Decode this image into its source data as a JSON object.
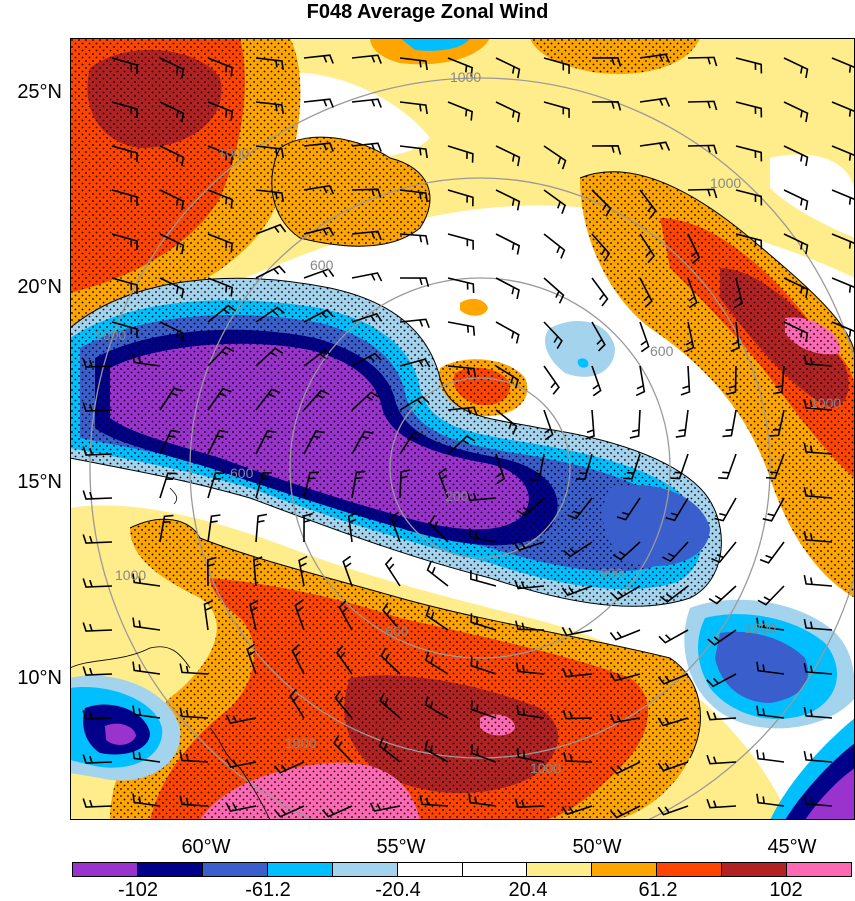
{
  "title": "F048 Average Zonal Wind",
  "axes": {
    "lat_labels": [
      "25°N",
      "20°N",
      "15°N",
      "10°N"
    ],
    "lon_labels": [
      "60°W",
      "55°W",
      "50°W",
      "45°W"
    ]
  },
  "colorbar": {
    "colors": [
      "#9a32cd",
      "#00008b",
      "#3a5fcd",
      "#00bfff",
      "#a4d3ee",
      "#ffffff",
      "#ffffff",
      "#ffec8b",
      "#ffa500",
      "#ff4500",
      "#b22222",
      "#ff69b4"
    ],
    "labels": [
      "-102",
      "-61.2",
      "-20.4",
      "20.4",
      "61.2",
      "102"
    ]
  },
  "map": {
    "contour_labels": [
      "1000",
      "1000",
      "600",
      "1000",
      "600",
      "1000",
      "200",
      "600",
      "1000",
      "600",
      "600",
      "1000",
      "1000",
      "1000",
      "1000"
    ],
    "fill_colors": {
      "purple": "#9a32cd",
      "navy": "#00008b",
      "royal": "#3a5fcd",
      "cyan": "#00bfff",
      "sky": "#a4d3ee",
      "yellow": "#ffec8b",
      "orange": "#ffa500",
      "red": "#ff4500",
      "darkred": "#b22222",
      "pink": "#ff69b4"
    }
  }
}
